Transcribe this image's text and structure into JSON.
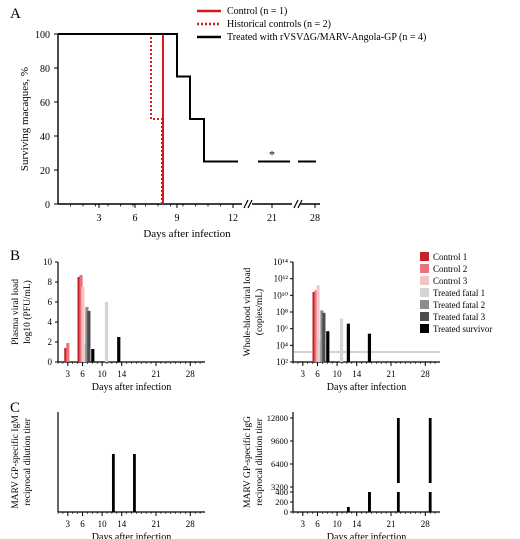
{
  "figure": {
    "panel_letters": [
      "A",
      "B",
      "C"
    ]
  },
  "colors": {
    "control": "#d7191c",
    "treated": "#000000",
    "control1": "#c8202b",
    "control2": "#e9737a",
    "control3": "#f3c4c6",
    "fatal1": "#d4d4d4",
    "fatal2": "#8c8c8c",
    "fatal3": "#4d4d4d",
    "survivor": "#000000"
  },
  "chart_data": [
    {
      "id": "A",
      "type": "line",
      "subtype": "kaplan-meier",
      "title": "",
      "xlabel": "Days after infection",
      "ylabel": "Surviving macaques, %",
      "x_ticks": [
        "3",
        "6",
        "9",
        "12",
        "21",
        "28"
      ],
      "y_ticks": [
        "0",
        "20",
        "40",
        "60",
        "80",
        "100"
      ],
      "ylim": [
        0,
        100
      ],
      "annotation": "*",
      "legend_position": "top-right",
      "series": [
        {
          "name": "Control (n = 1)",
          "style": "solid-red",
          "x": [
            0,
            8,
            8
          ],
          "y": [
            100,
            100,
            0
          ]
        },
        {
          "name": "Historical controls (n = 2)",
          "style": "dotted-red",
          "x": [
            0,
            7,
            7,
            8,
            8
          ],
          "y": [
            100,
            100,
            50,
            50,
            0
          ]
        },
        {
          "name": "Treated with rVSVΔG/MARV-Angola-GP (n = 4)",
          "style": "solid-black",
          "x": [
            0,
            9,
            9,
            10,
            10,
            11,
            11,
            14,
            21,
            28
          ],
          "y": [
            100,
            100,
            75,
            75,
            50,
            50,
            25,
            25,
            25,
            25
          ]
        }
      ]
    },
    {
      "id": "B-left",
      "type": "bar",
      "xlabel": "Days after infection",
      "ylabel_line1": "Plasma viral load",
      "ylabel_line2": "log10 (PFU/mL)",
      "x_ticks": [
        "3",
        "6",
        "10",
        "14",
        "21",
        "28"
      ],
      "y_ticks": [
        "0",
        "2",
        "4",
        "6",
        "8",
        "10"
      ],
      "ylim": [
        0,
        10
      ],
      "bars": [
        {
          "series": "Control 1",
          "day": 2.6,
          "value": 1.4
        },
        {
          "series": "Control 2",
          "day": 3.0,
          "value": 1.9
        },
        {
          "series": "Control 1",
          "day": 5.3,
          "value": 8.5
        },
        {
          "series": "Control 2",
          "day": 5.7,
          "value": 8.7
        },
        {
          "series": "Control 3",
          "day": 6.1,
          "value": 7.5
        },
        {
          "series": "Treated fatal 1",
          "day": 6.5,
          "value": 1.8
        },
        {
          "series": "Treated fatal 2",
          "day": 6.9,
          "value": 5.5
        },
        {
          "series": "Treated fatal 3",
          "day": 7.3,
          "value": 5.1
        },
        {
          "series": "Treated survivor",
          "day": 8.1,
          "value": 1.3
        },
        {
          "series": "Treated fatal 1",
          "day": 10.9,
          "value": 6.0
        },
        {
          "series": "Treated survivor",
          "day": 13.4,
          "value": 2.5
        }
      ]
    },
    {
      "id": "B-right",
      "type": "bar",
      "xlabel": "Days after infection",
      "ylabel_line1": "Whole-blood viral load",
      "ylabel_line2": "(copies/mL)",
      "x_ticks": [
        "3",
        "6",
        "10",
        "14",
        "21",
        "28"
      ],
      "y_ticks": [
        "10²",
        "10⁴",
        "10⁶",
        "10⁸",
        "10¹⁰",
        "10¹²",
        "10¹⁴"
      ],
      "y_scale": "log",
      "ylim_log10": [
        2,
        14
      ],
      "threshold_log10": 3.2,
      "legend": [
        "Control 1",
        "Control 2",
        "Control 3",
        "Treated fatal 1",
        "Treated fatal 2",
        "Treated fatal 3",
        "Treated survivor"
      ],
      "legend_position": "right",
      "bars": [
        {
          "series": "Control 1",
          "day": 5.3,
          "value_log10": 10.4
        },
        {
          "series": "Control 2",
          "day": 5.7,
          "value_log10": 10.6
        },
        {
          "series": "Control 3",
          "day": 6.1,
          "value_log10": 11.2
        },
        {
          "series": "Treated fatal 1",
          "day": 6.5,
          "value_log10": 4.5
        },
        {
          "series": "Treated fatal 2",
          "day": 6.9,
          "value_log10": 8.2
        },
        {
          "series": "Treated fatal 3",
          "day": 7.3,
          "value_log10": 7.9
        },
        {
          "series": "Treated survivor",
          "day": 8.1,
          "value_log10": 5.7
        },
        {
          "series": "Treated fatal 1",
          "day": 10.9,
          "value_log10": 7.2
        },
        {
          "series": "Treated survivor",
          "day": 12.3,
          "value_log10": 6.6
        },
        {
          "series": "Treated survivor",
          "day": 16.6,
          "value_log10": 5.4
        }
      ]
    },
    {
      "id": "C-left",
      "type": "bar",
      "xlabel": "Days after infection",
      "ylabel_line1": "MARV GP-specific IgM",
      "ylabel_line2": "reciprocal dilution titer",
      "x_ticks": [
        "3",
        "6",
        "10",
        "14",
        "21",
        "28"
      ],
      "y_ticks": [],
      "bars": [
        {
          "series": "Treated survivor",
          "day": 12.3,
          "value": 100
        },
        {
          "series": "Treated survivor",
          "day": 16.6,
          "value": 100
        }
      ]
    },
    {
      "id": "C-right",
      "type": "bar",
      "xlabel": "Days after infection",
      "ylabel_line1": "MARV GP-specific IgG",
      "ylabel_line2": "reciprocal dilution titer",
      "x_ticks": [
        "3",
        "6",
        "10",
        "14",
        "21",
        "28"
      ],
      "y_ticks": [
        "0",
        "200",
        "400",
        "3200",
        "6400",
        "9600",
        "12800"
      ],
      "y_scale": "broken",
      "bars": [
        {
          "series": "Treated survivor",
          "day": 12.3,
          "value": 100
        },
        {
          "series": "Treated survivor",
          "day": 16.6,
          "value": 400
        },
        {
          "series": "Treated survivor",
          "day": 16.6,
          "value": 3200
        },
        {
          "series": "Treated survivor",
          "day": 22.5,
          "value": 12800
        },
        {
          "series": "Treated survivor",
          "day": 29.0,
          "value": 12800
        }
      ]
    }
  ]
}
